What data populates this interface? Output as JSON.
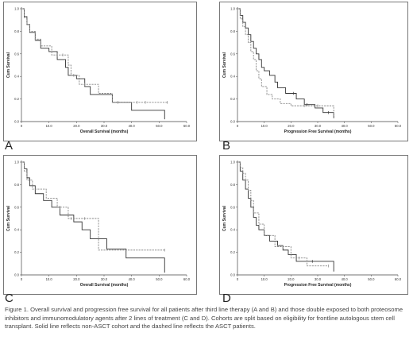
{
  "caption": "Figure 1. Overall survival and progression free survival for all patients after third line therapy (A and B) and those double exposed to both proteosome inhibitors and immunomodulatory agents after 2 lines of treatment (C and D). Cohorts are split based on eligibility for frontline autologous stem cell transplant. Solid line reflects non-ASCT cohort and the dashed line reflects the ASCT patients.",
  "chart_data": [
    {
      "id": "A",
      "type": "line",
      "ylabel": "Cum Survival",
      "xlabel": "Overall Survival (months)",
      "xlim": [
        0,
        60
      ],
      "ylim": [
        0,
        1
      ],
      "xticks": [
        "0",
        "10.0",
        "20.0",
        "30.0",
        "40.0",
        "50.0",
        "60.0"
      ],
      "yticks": [
        "0.0",
        "0.2",
        "0.4",
        "0.6",
        "0.8",
        "1.0"
      ],
      "series": [
        {
          "style": "solid",
          "color": "#333333",
          "x": [
            0,
            1,
            2,
            3,
            5,
            7,
            10,
            13,
            16,
            17,
            20,
            23,
            25,
            33,
            40,
            52
          ],
          "y": [
            1.0,
            0.93,
            0.86,
            0.79,
            0.72,
            0.65,
            0.62,
            0.55,
            0.48,
            0.41,
            0.38,
            0.31,
            0.24,
            0.17,
            0.1,
            0.02
          ],
          "censored_x": []
        },
        {
          "style": "dashed",
          "color": "#888888",
          "x": [
            0,
            1,
            2,
            3,
            5,
            7,
            11,
            17,
            18,
            21,
            28,
            33
          ],
          "y": [
            1.0,
            0.92,
            0.86,
            0.8,
            0.73,
            0.67,
            0.59,
            0.5,
            0.41,
            0.33,
            0.25,
            0.17
          ],
          "censored_x": [
            5,
            13,
            15,
            19,
            23,
            35,
            42,
            45,
            53
          ]
        }
      ]
    },
    {
      "id": "B",
      "type": "line",
      "ylabel": "Cum Survival",
      "xlabel": "Progression Free Survival (months)",
      "xlim": [
        0,
        60
      ],
      "ylim": [
        0,
        1
      ],
      "xticks": [
        "0",
        "10.0",
        "20.0",
        "30.0",
        "40.0",
        "50.0",
        "60.0"
      ],
      "yticks": [
        "0.0",
        "0.2",
        "0.4",
        "0.6",
        "0.8",
        "1.0"
      ],
      "series": [
        {
          "style": "solid",
          "color": "#333333",
          "x": [
            0,
            1,
            2,
            3,
            4,
            5,
            6,
            7,
            8,
            9,
            10,
            12,
            14,
            15,
            18,
            22,
            25,
            29,
            32,
            36
          ],
          "y": [
            1.0,
            0.94,
            0.88,
            0.83,
            0.77,
            0.71,
            0.65,
            0.6,
            0.55,
            0.48,
            0.45,
            0.41,
            0.35,
            0.3,
            0.25,
            0.2,
            0.15,
            0.12,
            0.08,
            0.03
          ],
          "censored_x": [
            21,
            26,
            34
          ]
        },
        {
          "style": "dashed",
          "color": "#888888",
          "x": [
            0,
            1,
            2,
            3,
            4,
            5,
            6,
            7,
            8,
            9,
            11,
            13,
            16,
            20,
            36
          ],
          "y": [
            1.0,
            0.91,
            0.84,
            0.77,
            0.7,
            0.62,
            0.55,
            0.45,
            0.38,
            0.31,
            0.24,
            0.2,
            0.16,
            0.14,
            0.05
          ],
          "censored_x": [
            25,
            30
          ]
        }
      ]
    },
    {
      "id": "C",
      "type": "line",
      "ylabel": "Cum Survival",
      "xlabel": "Overall Survival (months)",
      "xlim": [
        0,
        60
      ],
      "ylim": [
        0,
        1
      ],
      "xticks": [
        "0",
        "10.0",
        "20.0",
        "30.0",
        "40.0",
        "50.0",
        "60.0"
      ],
      "yticks": [
        "0.0",
        "0.2",
        "0.4",
        "0.6",
        "0.8",
        "1.0"
      ],
      "series": [
        {
          "style": "solid",
          "color": "#333333",
          "x": [
            0,
            1,
            2,
            3,
            5,
            8,
            11,
            14,
            19,
            22,
            25,
            31,
            38,
            52
          ],
          "y": [
            1.0,
            0.94,
            0.86,
            0.79,
            0.72,
            0.66,
            0.6,
            0.53,
            0.47,
            0.4,
            0.32,
            0.23,
            0.15,
            0.02
          ],
          "censored_x": []
        },
        {
          "style": "dashed",
          "color": "#888888",
          "x": [
            0,
            1,
            2,
            4,
            9,
            13,
            17,
            28
          ],
          "y": [
            1.0,
            0.92,
            0.84,
            0.76,
            0.68,
            0.6,
            0.5,
            0.22
          ],
          "censored_x": [
            14,
            18,
            23,
            52
          ]
        }
      ]
    },
    {
      "id": "D",
      "type": "line",
      "ylabel": "Cum Survival",
      "xlabel": "Progression Free Survival (months)",
      "xlim": [
        0,
        60
      ],
      "ylim": [
        0,
        1
      ],
      "xticks": [
        "0",
        "10.0",
        "20.0",
        "30.0",
        "40.0",
        "50.0",
        "60.0"
      ],
      "yticks": [
        "0.0",
        "0.2",
        "0.4",
        "0.6",
        "0.8",
        "1.0"
      ],
      "series": [
        {
          "style": "solid",
          "color": "#333333",
          "x": [
            0,
            1,
            2,
            3,
            4,
            5,
            6,
            7,
            8,
            10,
            12,
            15,
            17,
            19,
            22,
            36
          ],
          "y": [
            1.0,
            0.92,
            0.84,
            0.76,
            0.68,
            0.6,
            0.51,
            0.44,
            0.4,
            0.35,
            0.3,
            0.26,
            0.22,
            0.18,
            0.12,
            0.03
          ],
          "censored_x": [
            28
          ]
        },
        {
          "style": "dashed",
          "color": "#888888",
          "x": [
            0,
            1,
            2,
            3,
            4,
            5,
            6,
            8,
            10,
            14,
            20,
            26
          ],
          "y": [
            1.0,
            0.95,
            0.9,
            0.84,
            0.75,
            0.66,
            0.55,
            0.45,
            0.35,
            0.25,
            0.15,
            0.08
          ],
          "censored_x": [
            17,
            23,
            34
          ]
        }
      ]
    }
  ],
  "panel_letters": [
    "A",
    "B",
    "C",
    "D"
  ]
}
